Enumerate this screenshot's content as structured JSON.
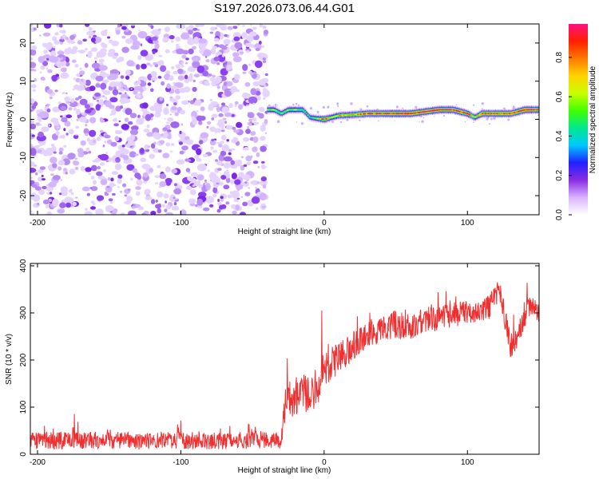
{
  "title": "S197.2026.073.06.44.G01",
  "chart_data": [
    {
      "type": "heatmap",
      "xlabel": "Height of straight line (km)",
      "ylabel": "Frequency (Hz)",
      "xlim": [
        -205,
        150
      ],
      "ylim": [
        -25,
        25
      ],
      "xticks": [
        -200,
        -100,
        0,
        100
      ],
      "xtick_labels": [
        "-200",
        "-100",
        "0",
        "100"
      ],
      "yticks": [
        -20,
        -10,
        0,
        10,
        20
      ],
      "ytick_labels": [
        "-20",
        "-10",
        "0",
        "10",
        "20"
      ],
      "noise_region_x": [
        -205,
        -40
      ],
      "ridge": {
        "x": [
          -40,
          -35,
          -30,
          -25,
          -20,
          -15,
          -10,
          -5,
          0,
          5,
          10,
          20,
          30,
          40,
          60,
          80,
          90,
          100,
          105,
          110,
          120,
          130,
          140,
          150
        ],
        "freq": [
          2.5,
          2.5,
          1.5,
          2.5,
          2.5,
          2.5,
          0.5,
          0.2,
          0.0,
          0.5,
          1.0,
          1.2,
          1.5,
          1.5,
          1.5,
          2.5,
          2.5,
          1.5,
          0.5,
          1.5,
          1.5,
          1.5,
          2.5,
          2.5
        ],
        "amp": [
          0.55,
          0.6,
          0.5,
          0.55,
          0.6,
          0.5,
          0.45,
          0.55,
          0.9,
          0.6,
          0.7,
          0.75,
          0.85,
          0.9,
          0.95,
          0.95,
          0.9,
          0.85,
          0.6,
          0.85,
          0.9,
          0.9,
          0.95,
          0.9
        ]
      },
      "colorbar": {
        "label": "Normalized spectral amplitude",
        "ticks": [
          0.0,
          0.2,
          0.4,
          0.6,
          0.8
        ],
        "tick_labels": [
          "0.0",
          "0.2",
          "0.4",
          "0.6",
          "0.8"
        ],
        "range": [
          0,
          0.97
        ],
        "colors": [
          "#ffffff",
          "#d9b3ff",
          "#8a2be2",
          "#2020ff",
          "#00c8ff",
          "#00e890",
          "#40ff00",
          "#c8ff00",
          "#ffd400",
          "#ff7a00",
          "#ff2000",
          "#ff1080"
        ]
      }
    },
    {
      "type": "line",
      "xlabel": "Height of straight line (km)",
      "ylabel": "SNR (10 * v/v)",
      "xlim": [
        -205,
        150
      ],
      "ylim": [
        0,
        405
      ],
      "xticks": [
        -200,
        -100,
        0,
        100
      ],
      "xtick_labels": [
        "-200",
        "-100",
        "0",
        "100"
      ],
      "yticks": [
        0,
        100,
        200,
        300,
        400
      ],
      "ytick_labels": [
        "0",
        "100",
        "200",
        "300",
        "400"
      ],
      "series": [
        {
          "name": "SNR",
          "color": "#f03030",
          "x": [
            -205,
            -190,
            -170,
            -150,
            -130,
            -110,
            -90,
            -70,
            -50,
            -30,
            -27,
            -22,
            -15,
            -10,
            -5,
            0,
            5,
            10,
            20,
            30,
            40,
            50,
            60,
            70,
            80,
            90,
            100,
            110,
            118,
            122,
            126,
            130,
            135,
            140,
            145,
            150
          ],
          "mean": [
            28,
            30,
            29,
            31,
            28,
            30,
            29,
            28,
            30,
            30,
            110,
            120,
            130,
            125,
            150,
            170,
            190,
            200,
            230,
            255,
            265,
            275,
            270,
            285,
            290,
            295,
            300,
            300,
            320,
            350,
            290,
            230,
            240,
            300,
            310,
            300
          ],
          "spread": [
            18,
            20,
            18,
            18,
            18,
            18,
            18,
            18,
            18,
            18,
            35,
            40,
            40,
            40,
            45,
            45,
            40,
            35,
            30,
            30,
            28,
            28,
            28,
            28,
            28,
            28,
            25,
            25,
            30,
            30,
            30,
            25,
            25,
            30,
            25,
            25
          ]
        }
      ]
    }
  ]
}
